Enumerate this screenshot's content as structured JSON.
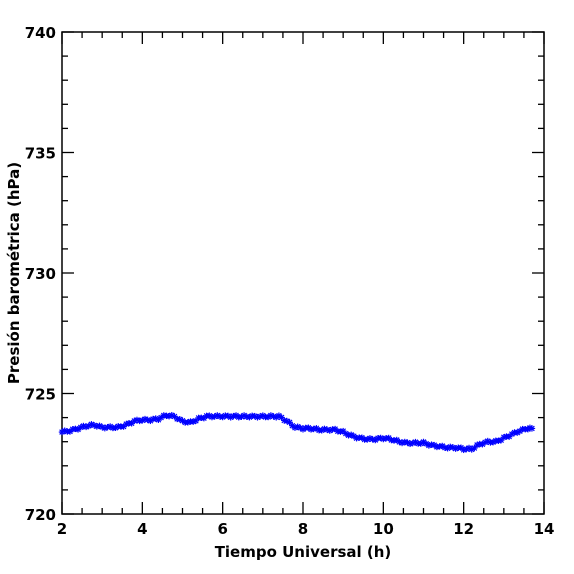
{
  "chart_data": {
    "type": "scatter",
    "title": "",
    "xlabel": "Tiempo Universal (h)",
    "ylabel": "Presión barométrica (hPa)",
    "xlim": [
      2,
      14
    ],
    "ylim": [
      720,
      740
    ],
    "x_ticks": [
      "2",
      "4",
      "6",
      "8",
      "10",
      "12",
      "14"
    ],
    "y_ticks": [
      "720",
      "725",
      "730",
      "735",
      "740"
    ],
    "grid": false,
    "legend": "none",
    "marker": "star",
    "marker_color": "#0000ff",
    "series": [
      {
        "x": [
          2.0,
          2.2,
          2.4,
          2.6,
          2.8,
          3.0,
          3.2,
          3.4,
          3.6,
          3.8,
          4.0,
          4.2,
          4.4,
          4.6,
          4.8,
          5.0,
          5.2,
          5.4,
          5.6,
          5.8,
          6.0,
          6.2,
          6.4,
          6.6,
          6.8,
          7.0,
          7.2,
          7.4,
          7.6,
          7.8,
          8.0,
          8.2,
          8.4,
          8.6,
          8.8,
          9.0,
          9.2,
          9.4,
          9.6,
          9.8,
          10.0,
          10.2,
          10.4,
          10.6,
          10.8,
          11.0,
          11.2,
          11.4,
          11.6,
          11.8,
          12.0,
          12.2,
          12.4,
          12.6,
          12.8,
          13.0,
          13.2,
          13.4,
          13.6,
          13.7
        ],
        "y": [
          723.4,
          723.45,
          723.55,
          723.65,
          723.7,
          723.6,
          723.6,
          723.6,
          723.7,
          723.85,
          723.9,
          723.9,
          723.95,
          724.1,
          724.05,
          723.85,
          723.8,
          723.95,
          724.05,
          724.05,
          724.05,
          724.05,
          724.05,
          724.05,
          724.05,
          724.05,
          724.05,
          724.05,
          723.85,
          723.6,
          723.55,
          723.55,
          723.5,
          723.5,
          723.5,
          723.4,
          723.25,
          723.15,
          723.1,
          723.1,
          723.15,
          723.1,
          723.0,
          722.95,
          722.95,
          722.95,
          722.85,
          722.8,
          722.75,
          722.75,
          722.7,
          722.7,
          722.9,
          723.0,
          723.0,
          723.15,
          723.3,
          723.45,
          723.55,
          723.55
        ]
      }
    ]
  }
}
